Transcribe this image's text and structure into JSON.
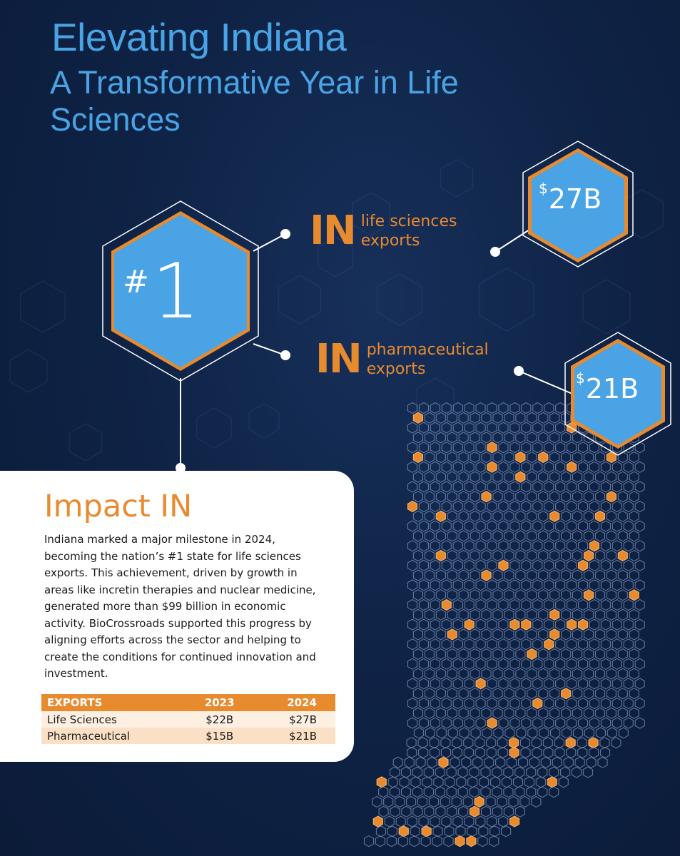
{
  "header": {
    "title": "Elevating Indiana",
    "subtitle": "A Transformative Year in Life Sciences"
  },
  "rank": {
    "hash": "#",
    "number": "1"
  },
  "stats": [
    {
      "prefix": "IN",
      "label": "life sciences exports",
      "currency": "$",
      "value": "27B"
    },
    {
      "prefix": "IN",
      "label": "pharmaceutical exports",
      "currency": "$",
      "value": "21B"
    }
  ],
  "impact": {
    "heading": "Impact IN",
    "body": "Indiana marked a major milestone in 2024, becoming the nation’s #1 state for life sciences exports. This achievement, driven by growth in areas like incretin therapies and nuclear medicine, generated more than $99 billion in economic activity. BioCrossroads supported this progress by aligning efforts across the sector and helping to create the conditions for continued innovation and investment."
  },
  "table": {
    "headers": [
      "EXPORTS",
      "2023",
      "2024"
    ],
    "rows": [
      [
        "Life Sciences",
        "$22B",
        "$27B"
      ],
      [
        "Pharmaceutical",
        "$15B",
        "$21B"
      ]
    ]
  },
  "colors": {
    "accent_orange": "#e88a2e",
    "hex_blue": "#4aa3e4",
    "background_navy": "#0f2346"
  },
  "icons": [
    "hexagon-badge",
    "indiana-hex-map"
  ]
}
